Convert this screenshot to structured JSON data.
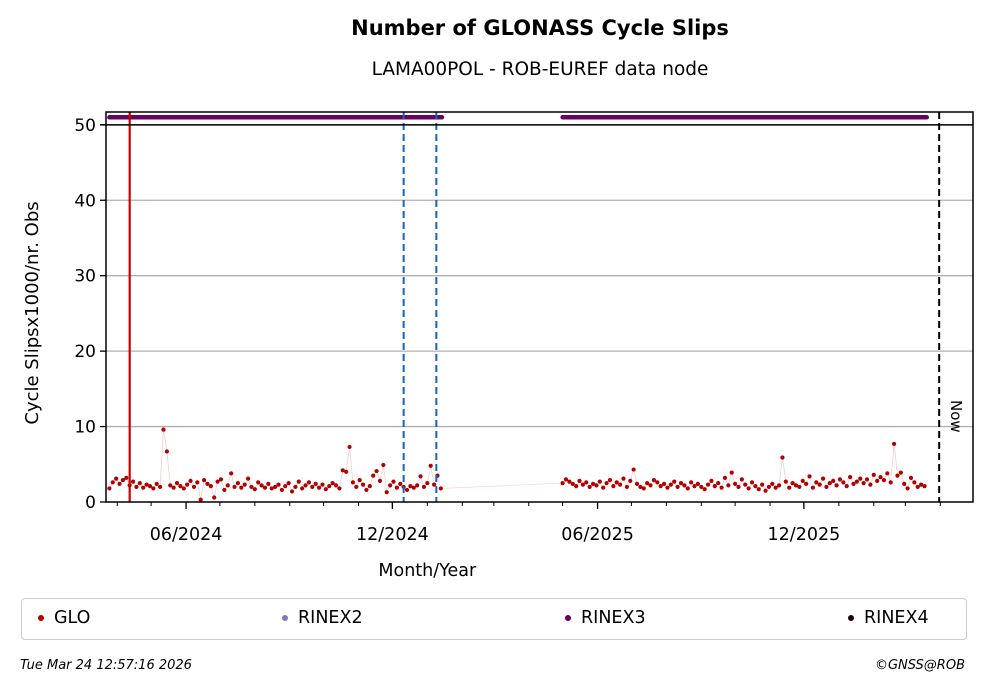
{
  "chart_data": {
    "type": "scatter",
    "title": "Number of GLONASS Cycle Slips",
    "subtitle": "LAMA00POL - ROB-EUREF data node",
    "xlabel": "Month/Year",
    "ylabel": "Cycle Slipsx1000/nr. Obs",
    "xlim": [
      "2024-03-22",
      "2026-04-30"
    ],
    "ylim": [
      0,
      51.7
    ],
    "yticks": [
      0,
      10,
      20,
      30,
      40,
      50
    ],
    "xticks": [
      {
        "date": "2024-06-01",
        "label": "06/2024"
      },
      {
        "date": "2024-12-01",
        "label": "12/2024"
      },
      {
        "date": "2025-06-01",
        "label": "06/2025"
      },
      {
        "date": "2025-12-01",
        "label": "12/2025"
      }
    ],
    "grid": "horizontal",
    "series": [
      {
        "name": "GLO",
        "color": "#b30000",
        "segments": [
          {
            "start": "2024-03-25",
            "step_days": 3,
            "values": [
              1.8,
              2.6,
              3.1,
              2.4,
              2.9,
              3.2,
              2.2,
              2.7,
              2.0,
              2.5,
              1.9,
              2.3,
              2.1,
              1.8,
              2.4,
              2.0,
              9.6,
              6.7,
              2.2,
              1.9,
              2.5,
              2.1,
              1.8,
              2.3,
              2.8,
              2.0,
              2.6,
              0.3,
              2.9,
              2.4,
              2.1,
              0.6,
              2.7,
              3.0,
              1.6,
              2.2,
              3.8,
              2.0,
              2.5,
              1.9,
              2.3,
              3.1,
              2.0,
              1.7,
              2.6,
              2.2,
              1.9,
              2.4,
              1.8,
              2.0,
              2.3,
              1.6,
              2.1,
              2.5,
              1.4,
              2.0,
              2.7,
              1.8,
              2.2,
              2.6,
              2.0,
              2.4,
              1.9,
              2.3,
              1.7,
              2.1,
              2.5,
              2.2,
              1.8,
              4.2,
              4.0,
              7.3,
              2.6,
              2.0,
              2.9,
              2.3,
              1.6,
              2.1,
              3.5,
              4.1,
              2.8,
              4.9,
              1.3,
              2.2,
              2.7,
              1.9,
              2.4,
              2.0,
              1.6,
              2.1,
              1.9,
              2.2,
              3.4,
              2.0,
              2.5,
              4.8,
              2.3,
              3.5,
              1.8
            ]
          },
          {
            "start": "2025-05-01",
            "step_days": 3,
            "values": [
              2.5,
              3.0,
              2.7,
              2.4,
              2.1,
              2.8,
              2.3,
              2.6,
              2.0,
              2.4,
              2.2,
              2.7,
              1.9,
              2.5,
              2.9,
              2.1,
              2.6,
              2.3,
              3.1,
              2.0,
              2.8,
              4.3,
              2.4,
              2.0,
              1.8,
              2.5,
              2.2,
              2.9,
              2.6,
              2.1,
              2.4,
              1.9,
              2.3,
              2.7,
              2.0,
              2.5,
              2.2,
              1.8,
              2.6,
              2.1,
              2.4,
              2.0,
              1.7,
              2.3,
              2.8,
              2.1,
              2.5,
              1.9,
              3.2,
              2.2,
              3.9,
              2.4,
              2.0,
              3.0,
              2.3,
              1.8,
              2.6,
              2.1,
              1.7,
              2.3,
              1.5,
              2.0,
              2.4,
              1.9,
              2.2,
              5.9,
              2.7,
              1.9,
              2.5,
              2.2,
              2.0,
              2.8,
              2.4,
              3.4,
              1.9,
              2.6,
              2.3,
              3.1,
              2.0,
              2.5,
              2.8,
              2.2,
              3.0,
              2.6,
              2.1,
              3.3,
              2.4,
              2.7,
              3.1,
              2.5,
              3.0,
              2.3,
              3.6,
              2.8,
              3.3,
              2.9,
              3.8,
              2.6,
              7.7,
              3.5,
              3.9,
              2.4,
              1.8,
              3.2,
              2.6,
              2.0,
              2.3,
              2.1
            ]
          }
        ]
      },
      {
        "name": "RINEX2",
        "color": "#8878c0",
        "segments": []
      },
      {
        "name": "RINEX3",
        "color": "#6a0060",
        "value": 51,
        "segments": [
          {
            "start": "2024-03-25",
            "end": "2025-01-14"
          },
          {
            "start": "2025-05-01",
            "end": "2026-03-20"
          }
        ]
      },
      {
        "name": "RINEX4",
        "color": "#1a0010",
        "segments": []
      }
    ],
    "vlines": [
      {
        "date": "2024-04-12",
        "color": "#cc0000",
        "style": "solid"
      },
      {
        "date": "2024-12-11",
        "color": "#1565c0",
        "style": "dashed"
      },
      {
        "date": "2025-01-09",
        "color": "#1565c0",
        "style": "dashed"
      },
      {
        "date": "2026-03-31",
        "color": "#000000",
        "style": "dashed",
        "label": "Now"
      }
    ],
    "legend_position": "bottom",
    "legend": [
      "GLO",
      "RINEX2",
      "RINEX3",
      "RINEX4"
    ]
  },
  "footer": {
    "timestamp": "Tue Mar 24 12:57:16 2026",
    "credit": "©GNSS@ROB"
  }
}
